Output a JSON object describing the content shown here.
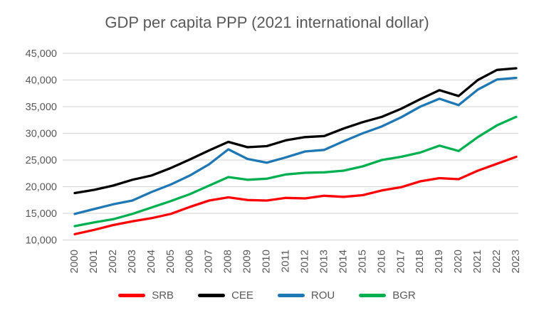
{
  "chart_data": {
    "type": "line",
    "title": "GDP per capita PPP (2021 international dollar)",
    "years": [
      2000,
      2001,
      2002,
      2003,
      2004,
      2005,
      2006,
      2007,
      2008,
      2009,
      2010,
      2011,
      2012,
      2013,
      2014,
      2015,
      2016,
      2017,
      2018,
      2019,
      2020,
      2021,
      2022,
      2023
    ],
    "series": [
      {
        "name": "SRB",
        "color": "#FF0000",
        "values": [
          11100,
          11900,
          12800,
          13500,
          14100,
          14900,
          16200,
          17400,
          18000,
          17500,
          17400,
          17900,
          17800,
          18300,
          18100,
          18400,
          19300,
          19900,
          21000,
          21600,
          21400,
          23000,
          24300,
          25600
        ]
      },
      {
        "name": "CEE",
        "color": "#000000",
        "values": [
          18800,
          19400,
          20200,
          21300,
          22100,
          23500,
          25100,
          26800,
          28400,
          27400,
          27600,
          28700,
          29300,
          29500,
          30900,
          32100,
          33100,
          34600,
          36400,
          38100,
          37000,
          40000,
          41900,
          42200
        ]
      },
      {
        "name": "ROU",
        "color": "#1F77B4",
        "values": [
          14900,
          15800,
          16700,
          17400,
          19000,
          20400,
          22100,
          24200,
          27000,
          25200,
          24500,
          25500,
          26600,
          26900,
          28500,
          30000,
          31300,
          33000,
          35000,
          36500,
          35300,
          38200,
          40100,
          40400
        ]
      },
      {
        "name": "BGR",
        "color": "#00B050",
        "values": [
          12600,
          13300,
          13900,
          14900,
          16100,
          17300,
          18600,
          20200,
          21800,
          21300,
          21500,
          22300,
          22600,
          22700,
          23000,
          23800,
          25000,
          25600,
          26400,
          27700,
          26700,
          29300,
          31500,
          33100
        ]
      }
    ],
    "ylim": [
      10000,
      45000
    ],
    "ytick_step": 5000,
    "yticks": [
      "10,000",
      "15,000",
      "20,000",
      "25,000",
      "30,000",
      "35,000",
      "40,000",
      "45,000"
    ],
    "x_label_rotation": -90,
    "grid": true,
    "legend_position": "bottom",
    "legend": [
      "SRB",
      "CEE",
      "ROU",
      "BGR"
    ]
  },
  "colors": {
    "title_text": "#595959",
    "axis_text": "#595959",
    "gridline": "#D9D9D9",
    "background": "#FFFFFF"
  }
}
